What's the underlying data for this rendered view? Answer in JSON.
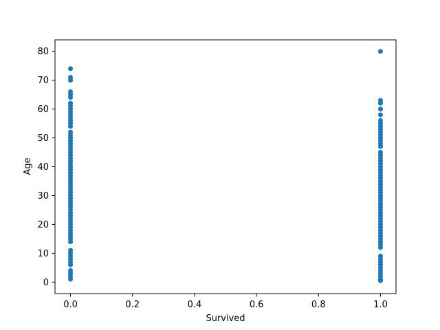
{
  "chart_data": {
    "type": "scatter",
    "title": "",
    "xlabel": "Survived",
    "ylabel": "Age",
    "xlim": [
      -0.05,
      1.05
    ],
    "ylim": [
      -3.98,
      83.98
    ],
    "x_ticks": [
      0.0,
      0.2,
      0.4,
      0.6,
      0.8,
      1.0
    ],
    "x_tick_labels": [
      "0.0",
      "0.2",
      "0.4",
      "0.6",
      "0.8",
      "1.0"
    ],
    "y_ticks": [
      0,
      10,
      20,
      30,
      40,
      50,
      60,
      70,
      80
    ],
    "y_tick_labels": [
      "0",
      "10",
      "20",
      "30",
      "40",
      "50",
      "60",
      "70",
      "80"
    ],
    "grid": false,
    "series": [
      {
        "color": "#1f77b4",
        "points": [
          {
            "x": 0,
            "y": 1
          },
          {
            "x": 0,
            "y": 2
          },
          {
            "x": 0,
            "y": 3
          },
          {
            "x": 0,
            "y": 4
          },
          {
            "x": 0,
            "y": 6
          },
          {
            "x": 0,
            "y": 7
          },
          {
            "x": 0,
            "y": 8
          },
          {
            "x": 0,
            "y": 9
          },
          {
            "x": 0,
            "y": 10
          },
          {
            "x": 0,
            "y": 11
          },
          {
            "x": 0,
            "y": 14
          },
          {
            "x": 0,
            "y": 15
          },
          {
            "x": 0,
            "y": 16
          },
          {
            "x": 0,
            "y": 17
          },
          {
            "x": 0,
            "y": 18
          },
          {
            "x": 0,
            "y": 19
          },
          {
            "x": 0,
            "y": 20
          },
          {
            "x": 0,
            "y": 21
          },
          {
            "x": 0,
            "y": 22
          },
          {
            "x": 0,
            "y": 23
          },
          {
            "x": 0,
            "y": 24
          },
          {
            "x": 0,
            "y": 25
          },
          {
            "x": 0,
            "y": 26
          },
          {
            "x": 0,
            "y": 27
          },
          {
            "x": 0,
            "y": 28
          },
          {
            "x": 0,
            "y": 29
          },
          {
            "x": 0,
            "y": 30
          },
          {
            "x": 0,
            "y": 31
          },
          {
            "x": 0,
            "y": 32
          },
          {
            "x": 0,
            "y": 33
          },
          {
            "x": 0,
            "y": 34
          },
          {
            "x": 0,
            "y": 35
          },
          {
            "x": 0,
            "y": 36
          },
          {
            "x": 0,
            "y": 37
          },
          {
            "x": 0,
            "y": 38
          },
          {
            "x": 0,
            "y": 39
          },
          {
            "x": 0,
            "y": 40
          },
          {
            "x": 0,
            "y": 41
          },
          {
            "x": 0,
            "y": 42
          },
          {
            "x": 0,
            "y": 43
          },
          {
            "x": 0,
            "y": 44
          },
          {
            "x": 0,
            "y": 45
          },
          {
            "x": 0,
            "y": 46
          },
          {
            "x": 0,
            "y": 47
          },
          {
            "x": 0,
            "y": 48
          },
          {
            "x": 0,
            "y": 49
          },
          {
            "x": 0,
            "y": 50
          },
          {
            "x": 0,
            "y": 51
          },
          {
            "x": 0,
            "y": 52
          },
          {
            "x": 0,
            "y": 54
          },
          {
            "x": 0,
            "y": 55
          },
          {
            "x": 0,
            "y": 56
          },
          {
            "x": 0,
            "y": 57
          },
          {
            "x": 0,
            "y": 58
          },
          {
            "x": 0,
            "y": 59
          },
          {
            "x": 0,
            "y": 60
          },
          {
            "x": 0,
            "y": 61
          },
          {
            "x": 0,
            "y": 62
          },
          {
            "x": 0,
            "y": 64
          },
          {
            "x": 0,
            "y": 65
          },
          {
            "x": 0,
            "y": 66
          },
          {
            "x": 0,
            "y": 70
          },
          {
            "x": 0,
            "y": 71
          },
          {
            "x": 0,
            "y": 74
          },
          {
            "x": 1,
            "y": 0.5
          },
          {
            "x": 1,
            "y": 1
          },
          {
            "x": 1,
            "y": 2
          },
          {
            "x": 1,
            "y": 3
          },
          {
            "x": 1,
            "y": 4
          },
          {
            "x": 1,
            "y": 5
          },
          {
            "x": 1,
            "y": 6
          },
          {
            "x": 1,
            "y": 7
          },
          {
            "x": 1,
            "y": 8
          },
          {
            "x": 1,
            "y": 9
          },
          {
            "x": 1,
            "y": 12
          },
          {
            "x": 1,
            "y": 13
          },
          {
            "x": 1,
            "y": 14
          },
          {
            "x": 1,
            "y": 15
          },
          {
            "x": 1,
            "y": 16
          },
          {
            "x": 1,
            "y": 17
          },
          {
            "x": 1,
            "y": 18
          },
          {
            "x": 1,
            "y": 19
          },
          {
            "x": 1,
            "y": 20
          },
          {
            "x": 1,
            "y": 21
          },
          {
            "x": 1,
            "y": 22
          },
          {
            "x": 1,
            "y": 23
          },
          {
            "x": 1,
            "y": 24
          },
          {
            "x": 1,
            "y": 25
          },
          {
            "x": 1,
            "y": 26
          },
          {
            "x": 1,
            "y": 27
          },
          {
            "x": 1,
            "y": 28
          },
          {
            "x": 1,
            "y": 29
          },
          {
            "x": 1,
            "y": 30
          },
          {
            "x": 1,
            "y": 31
          },
          {
            "x": 1,
            "y": 32
          },
          {
            "x": 1,
            "y": 33
          },
          {
            "x": 1,
            "y": 34
          },
          {
            "x": 1,
            "y": 35
          },
          {
            "x": 1,
            "y": 36
          },
          {
            "x": 1,
            "y": 37
          },
          {
            "x": 1,
            "y": 38
          },
          {
            "x": 1,
            "y": 39
          },
          {
            "x": 1,
            "y": 40
          },
          {
            "x": 1,
            "y": 41
          },
          {
            "x": 1,
            "y": 42
          },
          {
            "x": 1,
            "y": 43
          },
          {
            "x": 1,
            "y": 44
          },
          {
            "x": 1,
            "y": 45
          },
          {
            "x": 1,
            "y": 47
          },
          {
            "x": 1,
            "y": 48
          },
          {
            "x": 1,
            "y": 49
          },
          {
            "x": 1,
            "y": 50
          },
          {
            "x": 1,
            "y": 51
          },
          {
            "x": 1,
            "y": 52
          },
          {
            "x": 1,
            "y": 53
          },
          {
            "x": 1,
            "y": 54
          },
          {
            "x": 1,
            "y": 55
          },
          {
            "x": 1,
            "y": 56
          },
          {
            "x": 1,
            "y": 58
          },
          {
            "x": 1,
            "y": 60
          },
          {
            "x": 1,
            "y": 62
          },
          {
            "x": 1,
            "y": 63
          },
          {
            "x": 1,
            "y": 80
          }
        ]
      }
    ]
  }
}
